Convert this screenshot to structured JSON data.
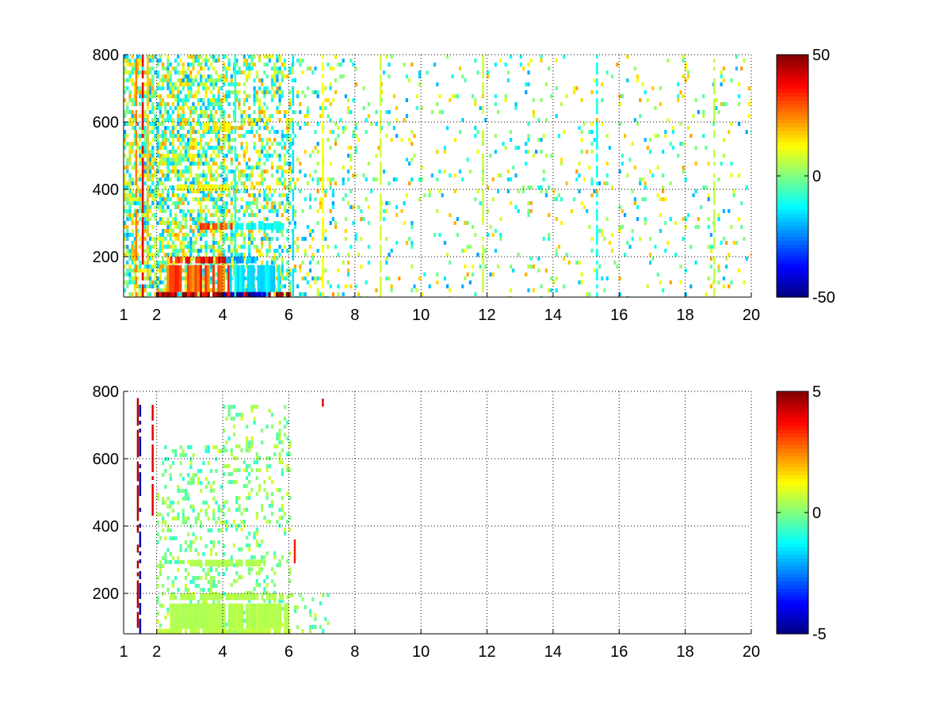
{
  "chart_data": [
    {
      "type": "heatmap",
      "title": "",
      "xlabel": "",
      "ylabel": "",
      "xlim": [
        1,
        20
      ],
      "ylim": [
        80,
        800
      ],
      "x_ticks": [
        "1",
        "2",
        "4",
        "6",
        "8",
        "10",
        "12",
        "14",
        "16",
        "18",
        "20"
      ],
      "x_tick_values": [
        1,
        2,
        4,
        6,
        8,
        10,
        12,
        14,
        16,
        18,
        20
      ],
      "y_ticks": [
        "200",
        "400",
        "600",
        "800"
      ],
      "y_tick_values": [
        200,
        400,
        600,
        800
      ],
      "grid": true,
      "colormap": "jet",
      "colorbar": {
        "range": [
          -50,
          50
        ],
        "ticks": [
          "-50",
          "0",
          "50"
        ],
        "tick_values": [
          -50,
          0,
          50
        ]
      },
      "bands": [
        {
          "y": [
            80,
            95
          ],
          "x": [
            2.0,
            6.0
          ],
          "v": 45
        },
        {
          "y": [
            80,
            95
          ],
          "x": [
            4.0,
            5.3
          ],
          "v": -45
        },
        {
          "y": [
            95,
            175
          ],
          "x": [
            2.3,
            4.2
          ],
          "v": 30
        },
        {
          "y": [
            95,
            175
          ],
          "x": [
            4.2,
            5.8
          ],
          "v": -15
        },
        {
          "y": [
            180,
            200
          ],
          "x": [
            2.4,
            4.1
          ],
          "v": 35
        },
        {
          "y": [
            180,
            200
          ],
          "x": [
            4.1,
            5.0
          ],
          "v": -20
        },
        {
          "y": [
            280,
            300
          ],
          "x": [
            3.3,
            4.4
          ],
          "v": 28
        },
        {
          "y": [
            280,
            300
          ],
          "x": [
            4.4,
            5.9
          ],
          "v": -12
        },
        {
          "y": [
            395,
            415
          ],
          "x": [
            2.6,
            4.2
          ],
          "v": 12
        },
        {
          "y": [
            570,
            600
          ],
          "x": [
            3.4,
            4.2
          ],
          "v": 14
        }
      ],
      "columns": [
        {
          "x": 1.35,
          "v": 25
        },
        {
          "x": 1.55,
          "v": 40
        },
        {
          "x": 1.7,
          "v": 18
        },
        {
          "x": 4.35,
          "v": -8
        },
        {
          "x": 6.1,
          "v": -15
        },
        {
          "x": 7.0,
          "v": 12
        },
        {
          "x": 8.75,
          "v": 8
        },
        {
          "x": 11.85,
          "v": 7
        },
        {
          "x": 15.3,
          "v": -12
        },
        {
          "x": 18.85,
          "v": 6
        }
      ],
      "scatter_regions": [
        {
          "x": [
            1.0,
            4.0
          ],
          "y": [
            80,
            800
          ],
          "density": 0.6
        },
        {
          "x": [
            4.0,
            6.0
          ],
          "y": [
            80,
            800
          ],
          "density": 0.45
        },
        {
          "x": [
            6.0,
            8.0
          ],
          "y": [
            80,
            800
          ],
          "density": 0.15
        },
        {
          "x": [
            8.0,
            20.0
          ],
          "y": [
            80,
            800
          ],
          "density": 0.07
        }
      ]
    },
    {
      "type": "heatmap",
      "title": "",
      "xlabel": "",
      "ylabel": "",
      "xlim": [
        1,
        20
      ],
      "ylim": [
        80,
        800
      ],
      "x_ticks": [
        "1",
        "2",
        "4",
        "6",
        "8",
        "10",
        "12",
        "14",
        "16",
        "18",
        "20"
      ],
      "x_tick_values": [
        1,
        2,
        4,
        6,
        8,
        10,
        12,
        14,
        16,
        18,
        20
      ],
      "y_ticks": [
        "200",
        "400",
        "600",
        "800"
      ],
      "y_tick_values": [
        200,
        400,
        600,
        800
      ],
      "grid": true,
      "colormap": "jet",
      "colorbar": {
        "range": [
          -5,
          5
        ],
        "ticks": [
          "-5",
          "0",
          "5"
        ],
        "tick_values": [
          -5,
          0,
          5
        ]
      },
      "bands": [
        {
          "y": [
            80,
            95
          ],
          "x": [
            2.0,
            6.0
          ],
          "v": 0.6
        },
        {
          "y": [
            95,
            170
          ],
          "x": [
            2.4,
            6.0
          ],
          "v": 0.5
        },
        {
          "y": [
            180,
            200
          ],
          "x": [
            2.4,
            5.8
          ],
          "v": 0.5
        },
        {
          "y": [
            280,
            300
          ],
          "x": [
            3.0,
            5.3
          ],
          "v": 0.5
        }
      ],
      "columns": [
        {
          "x": 1.4,
          "v": 4.5,
          "y": [
            100,
            780
          ]
        },
        {
          "x": 1.47,
          "v": -4.5,
          "y": [
            80,
            760
          ]
        },
        {
          "x": 1.85,
          "v": 4.0,
          "y": [
            420,
            760
          ]
        },
        {
          "x": 6.15,
          "v": 3.5,
          "y": [
            300,
            360
          ]
        },
        {
          "x": 7.0,
          "v": 4.0,
          "y": [
            760,
            790
          ]
        }
      ],
      "scatter_regions": [
        {
          "x": [
            2.0,
            4.0
          ],
          "y": [
            80,
            640
          ],
          "density": 0.25
        },
        {
          "x": [
            4.0,
            6.0
          ],
          "y": [
            80,
            760
          ],
          "density": 0.2
        },
        {
          "x": [
            6.0,
            7.2
          ],
          "y": [
            80,
            200
          ],
          "density": 0.15
        }
      ]
    }
  ]
}
